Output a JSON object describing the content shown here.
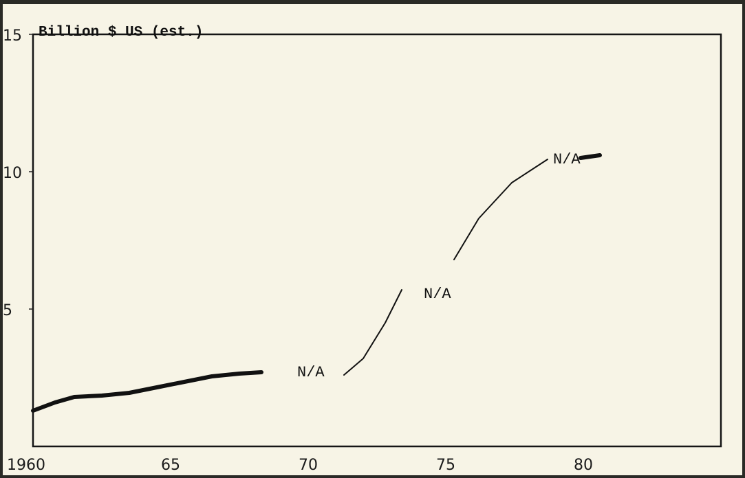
{
  "chart_data": {
    "type": "line",
    "ylabel": "Billion $ US (est.)",
    "xlim": [
      1960,
      1985
    ],
    "ylim": [
      0,
      15
    ],
    "x_ticks": [
      "1960",
      "65",
      "70",
      "75",
      "80"
    ],
    "y_ticks": [
      "15",
      "10",
      "5"
    ],
    "grid": false,
    "series_segments": [
      {
        "style": "thick",
        "points": [
          [
            1960,
            1.3
          ],
          [
            1960.8,
            1.6
          ],
          [
            1961.5,
            1.8
          ],
          [
            1962.5,
            1.85
          ],
          [
            1963.5,
            1.95
          ],
          [
            1964.5,
            2.15
          ],
          [
            1965.5,
            2.35
          ],
          [
            1966.5,
            2.55
          ],
          [
            1967.5,
            2.65
          ],
          [
            1968.3,
            2.7
          ]
        ]
      },
      {
        "style": "thin",
        "points": [
          [
            1971.3,
            2.6
          ],
          [
            1972,
            3.2
          ],
          [
            1972.8,
            4.5
          ],
          [
            1973.4,
            5.7
          ]
        ]
      },
      {
        "style": "thin",
        "points": [
          [
            1975.3,
            6.8
          ],
          [
            1976.2,
            8.3
          ],
          [
            1977.4,
            9.6
          ],
          [
            1978.7,
            10.45
          ]
        ]
      },
      {
        "style": "thick",
        "points": [
          [
            1979.9,
            10.5
          ],
          [
            1980.6,
            10.6
          ]
        ]
      }
    ],
    "annotations": [
      {
        "text": "N/A",
        "x": 1969.6,
        "y": 2.75
      },
      {
        "text": "N/A",
        "x": 1974.2,
        "y": 5.6
      },
      {
        "text": "N/A",
        "x": 1978.9,
        "y": 10.5
      }
    ]
  }
}
